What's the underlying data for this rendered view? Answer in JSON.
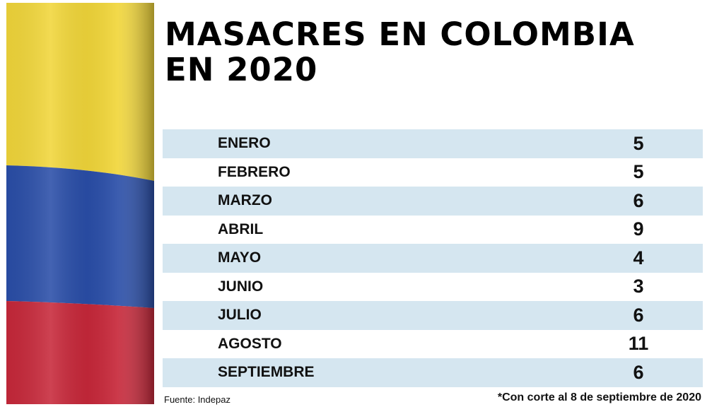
{
  "title": {
    "line1": "MASACRES EN COLOMBIA",
    "line2": "EN 2020"
  },
  "colors": {
    "flag_yellow": "#f1d63a",
    "flag_blue": "#2a4ea8",
    "flag_red": "#c7283a",
    "row_shade": "#d5e6f0"
  },
  "chart_data": {
    "type": "table",
    "title": "MASACRES EN COLOMBIA EN 2020",
    "categories": [
      "ENERO",
      "FEBRERO",
      "MARZO",
      "ABRIL",
      "MAYO",
      "JUNIO",
      "JULIO",
      "AGOSTO",
      "SEPTIEMBRE"
    ],
    "values": [
      5,
      5,
      6,
      9,
      4,
      3,
      6,
      11,
      6
    ]
  },
  "footer": {
    "source": "Fuente: Indepaz",
    "note": "*Con corte al 8 de septiembre de 2020"
  }
}
